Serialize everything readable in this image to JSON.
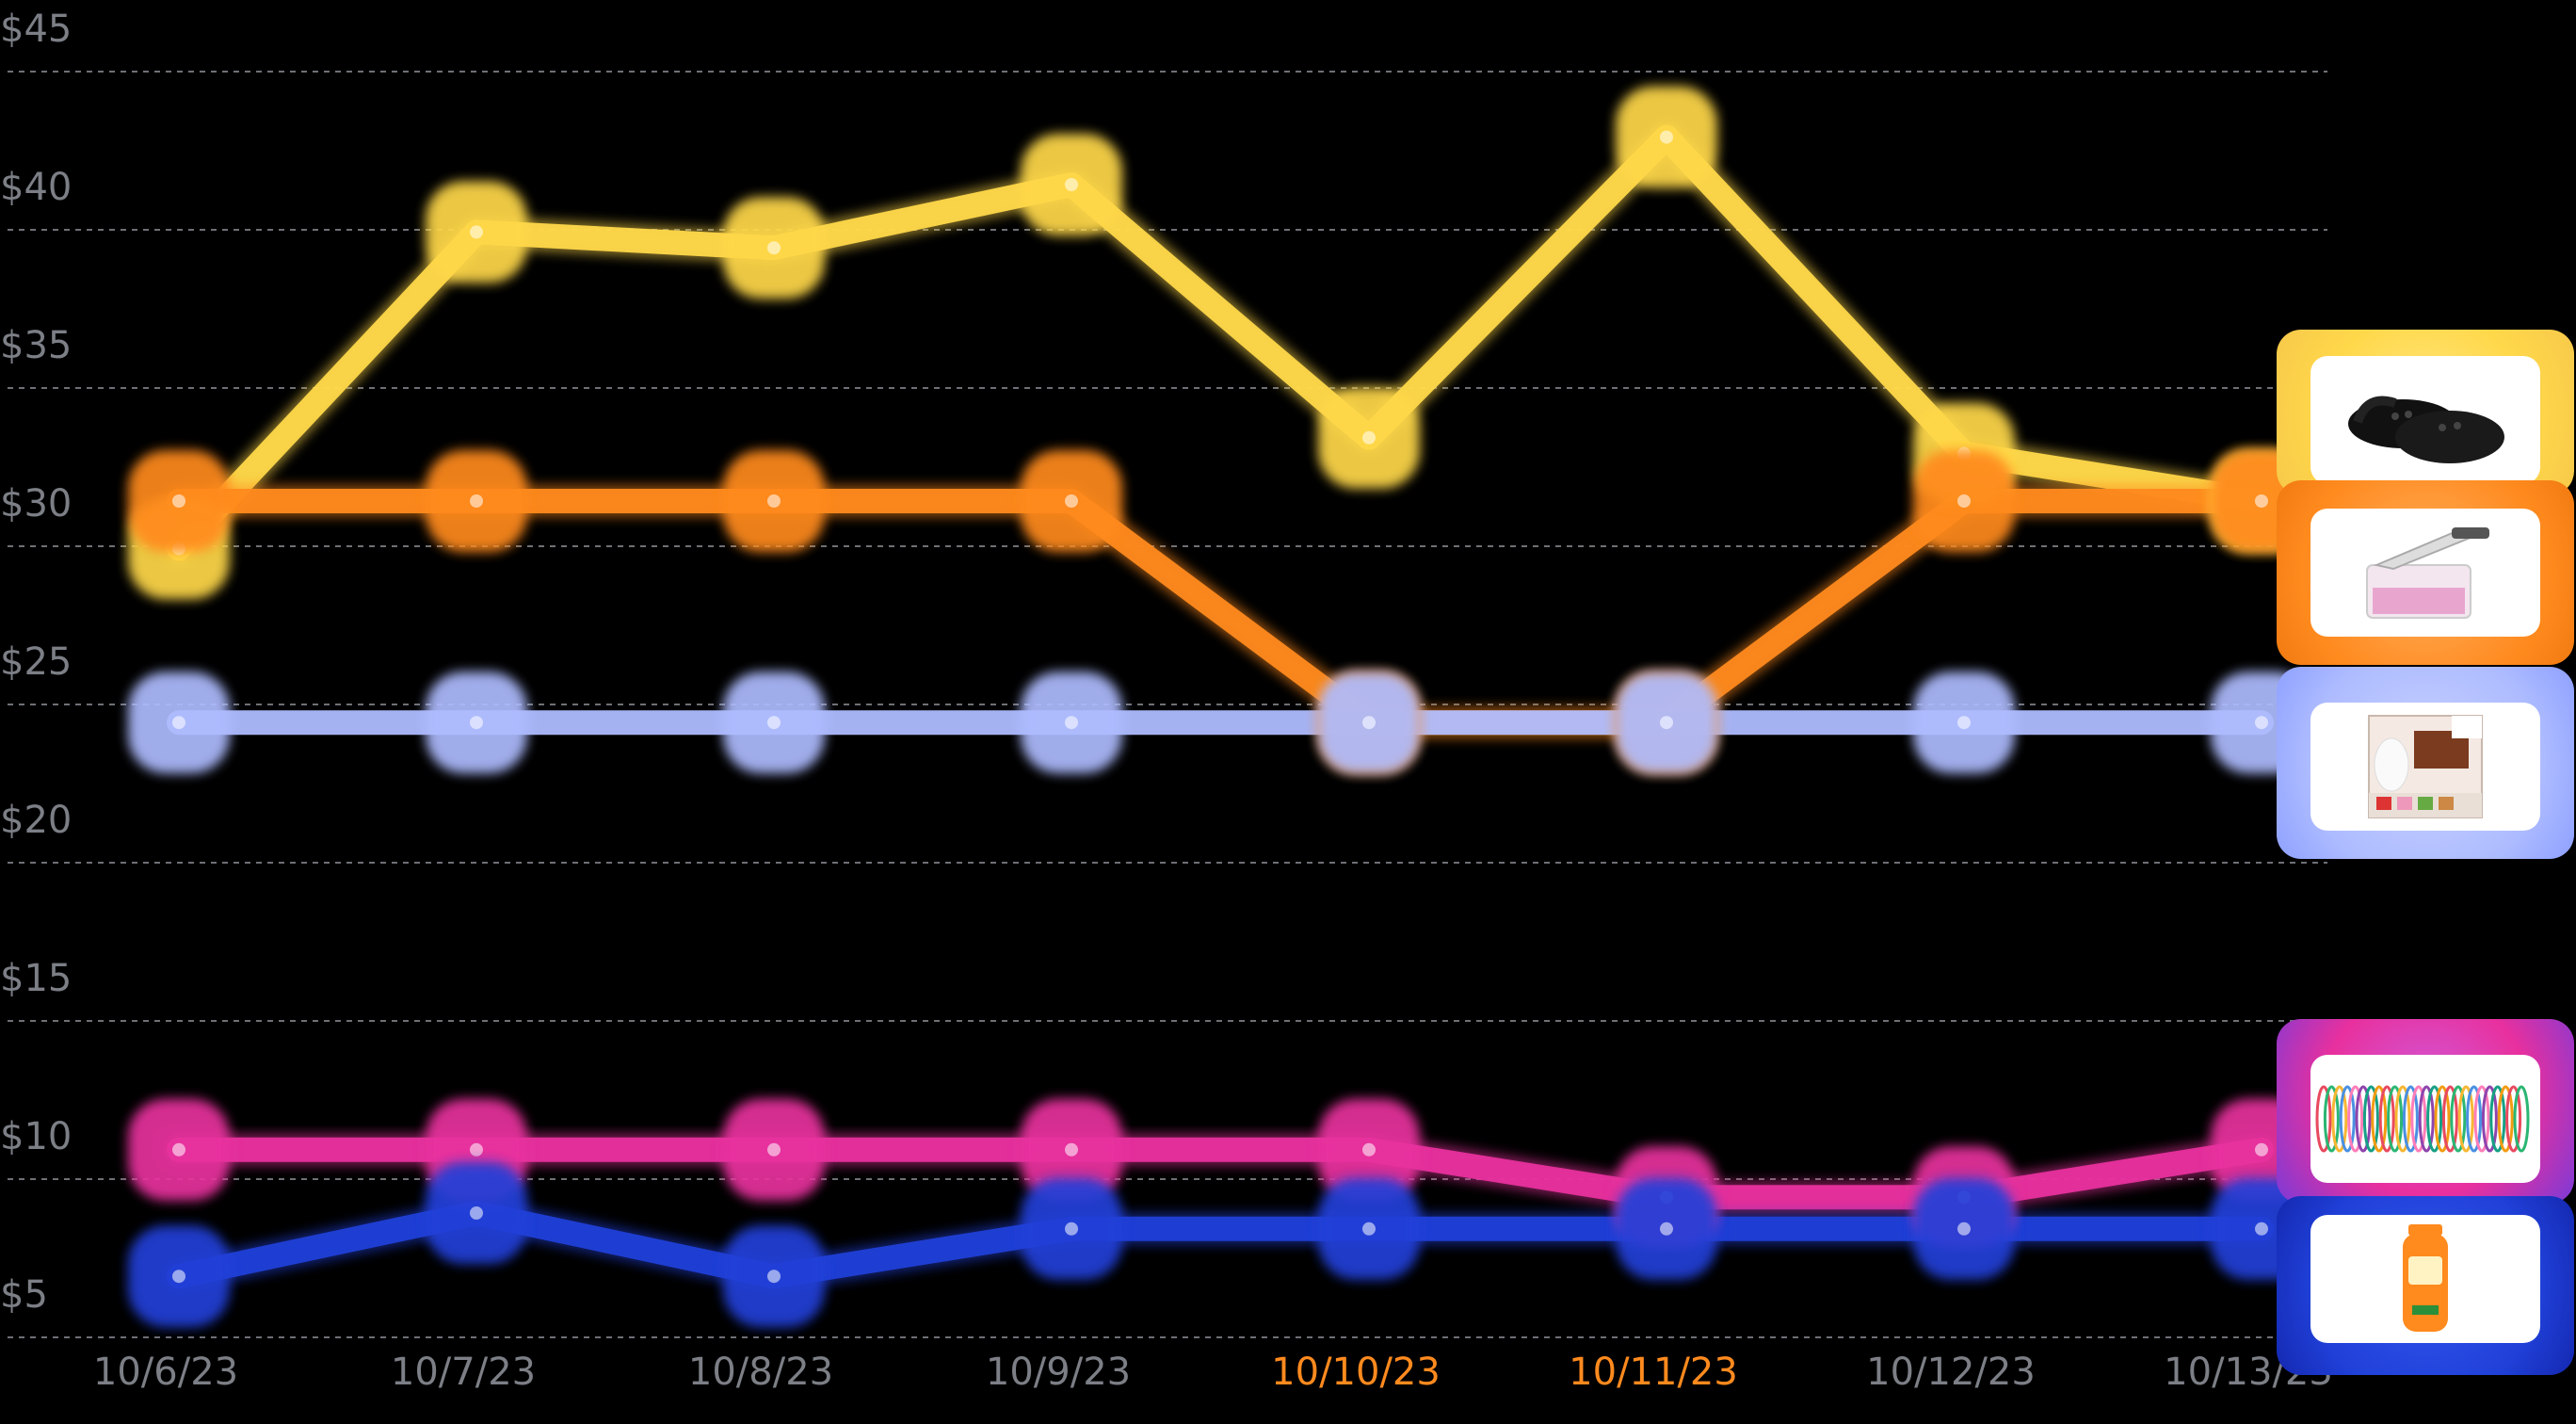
{
  "chart_data": {
    "type": "line",
    "x": [
      "10/6/23",
      "10/7/23",
      "10/8/23",
      "10/9/23",
      "10/10/23",
      "10/11/23",
      "10/12/23",
      "10/13/23"
    ],
    "highlighted_x": [
      "10/10/23",
      "10/11/23"
    ],
    "y_ticks": [
      "$5",
      "$10",
      "$15",
      "$20",
      "$25",
      "$30",
      "$35",
      "$40",
      "$45"
    ],
    "ylim": [
      3,
      46
    ],
    "grid": true,
    "series": [
      {
        "product": "clogs",
        "color": "#ffd84a",
        "values": [
          28.5,
          38.5,
          38,
          40,
          32,
          41.5,
          31.5,
          30
        ]
      },
      {
        "product": "vegetable chopper",
        "color": "#ff8a1e",
        "values": [
          30,
          30,
          30,
          30,
          23,
          23,
          30,
          30
        ]
      },
      {
        "product": "cat food variety pack",
        "color": "#aebcff",
        "values": [
          23,
          23,
          23,
          23,
          23,
          23,
          23,
          23
        ]
      },
      {
        "product": "bracelets",
        "color": "#e8309e",
        "values": [
          9.5,
          9.5,
          9.5,
          9.5,
          9.5,
          8,
          8,
          9.5
        ]
      },
      {
        "product": "sunscreen",
        "color": "#2040d8",
        "values": [
          5.5,
          7.5,
          5.5,
          7,
          7,
          7,
          7,
          7
        ]
      }
    ],
    "tick_colors": {
      "default": "#7c7f86",
      "highlight": "#ff8a1e"
    }
  }
}
